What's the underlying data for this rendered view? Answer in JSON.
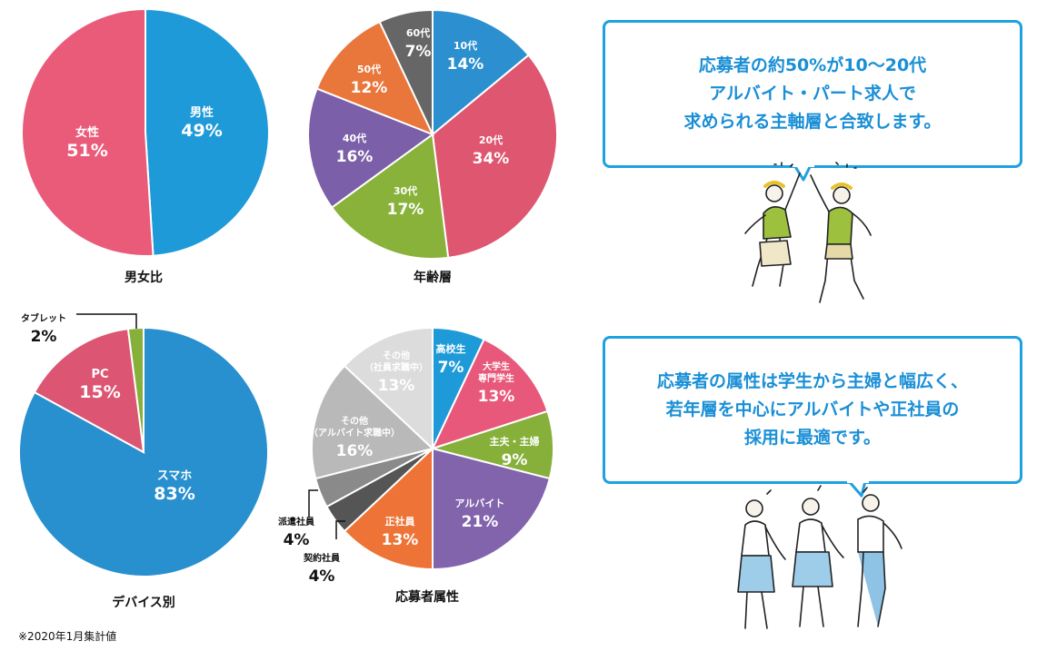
{
  "chart_data": [
    {
      "type": "pie",
      "title": "男女比",
      "slices": [
        {
          "label": "男性",
          "value": 49,
          "display": "49%",
          "color": "#1f9ad9"
        },
        {
          "label": "女性",
          "value": 51,
          "display": "51%",
          "color": "#ea5b7a"
        }
      ]
    },
    {
      "type": "pie",
      "title": "年齢層",
      "slices": [
        {
          "label": "10代",
          "value": 14,
          "display": "14%",
          "color": "#2b8fd0"
        },
        {
          "label": "20代",
          "value": 34,
          "display": "34%",
          "color": "#de5670"
        },
        {
          "label": "30代",
          "value": 17,
          "display": "17%",
          "color": "#88b23a"
        },
        {
          "label": "40代",
          "value": 16,
          "display": "16%",
          "color": "#7b5fa8"
        },
        {
          "label": "50代",
          "value": 12,
          "display": "12%",
          "color": "#e9763a"
        },
        {
          "label": "60代",
          "value": 7,
          "display": "7%",
          "color": "#666666"
        }
      ]
    },
    {
      "type": "pie",
      "title": "デバイス別",
      "slices": [
        {
          "label": "タブレット",
          "value": 2,
          "display": "2%",
          "color": "#86b03a"
        },
        {
          "label": "スマホ",
          "value": 83,
          "display": "83%",
          "color": "#2890cf"
        },
        {
          "label": "PC",
          "value": 15,
          "display": "15%",
          "color": "#dc5572"
        }
      ]
    },
    {
      "type": "pie",
      "title": "応募者属性",
      "slices": [
        {
          "label": "高校生",
          "value": 7,
          "display": "7%",
          "color": "#1f9ad9"
        },
        {
          "label": "大学生\n専門学生",
          "value": 13,
          "display": "13%",
          "color": "#e8587a"
        },
        {
          "label": "主夫・主婦",
          "value": 9,
          "display": "9%",
          "color": "#86b03a"
        },
        {
          "label": "アルバイト",
          "value": 21,
          "display": "21%",
          "color": "#8264ac"
        },
        {
          "label": "正社員",
          "value": 13,
          "display": "13%",
          "color": "#ee7336"
        },
        {
          "label": "契約社員",
          "value": 4,
          "display": "4%",
          "color": "#555555"
        },
        {
          "label": "派遣社員",
          "value": 4,
          "display": "4%",
          "color": "#8a8a8a"
        },
        {
          "label": "その他\n（アルバイト求職中）",
          "value": 16,
          "display": "16%",
          "color": "#b9b9b9"
        },
        {
          "label": "その他\n（社員求職中）",
          "value": 13,
          "display": "13%",
          "color": "#dcdcdc"
        }
      ]
    }
  ],
  "callouts": {
    "top": [
      "応募者の約50%が10～20代",
      "アルバイト・パート求人で",
      "求められる主軸層と合致します。"
    ],
    "bottom": [
      "応募者の属性は学生から主婦と幅広く、",
      "若年層を中心にアルバイトや正社員の",
      "採用に最適です。"
    ]
  },
  "footnote": "※2020年1月集計値",
  "colors": {
    "accent": "#1ea1e0"
  }
}
